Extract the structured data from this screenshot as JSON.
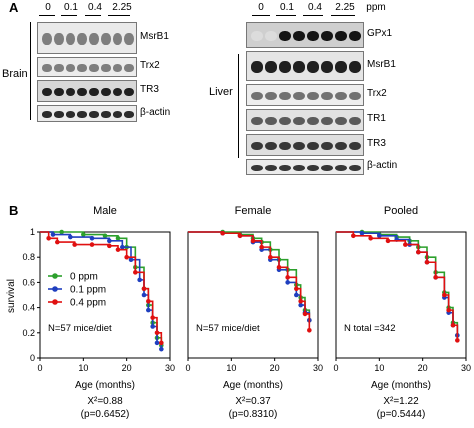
{
  "panel_a": {
    "letter": "A",
    "lanes": [
      "0",
      "0.1",
      "0.4",
      "2.25"
    ],
    "unit": "ppm",
    "brain": {
      "tissue": "Brain",
      "blots": [
        {
          "label": "MsrB1",
          "intensity": 0.55,
          "bg": "#eaeaea"
        },
        {
          "label": "Trx2",
          "intensity": 0.55,
          "bg": "#ececec"
        },
        {
          "label": "TR3",
          "intensity": 0.95,
          "bg": "#d8d8d8"
        },
        {
          "label": "β-actin",
          "intensity": 0.9,
          "bg": "#ececec"
        }
      ]
    },
    "liver": {
      "tissue": "Liver",
      "blots": [
        {
          "label": "GPx1",
          "intensity": 1.0,
          "bg": "#cfcfcf"
        },
        {
          "label": "MsrB1",
          "intensity": 0.95,
          "bg": "#e5e5e5"
        },
        {
          "label": "Trx2",
          "intensity": 0.6,
          "bg": "#ededed"
        },
        {
          "label": "TR1",
          "intensity": 0.7,
          "bg": "#e2e2e2"
        },
        {
          "label": "TR3",
          "intensity": 0.85,
          "bg": "#dedede"
        },
        {
          "label": "β-actin",
          "intensity": 0.85,
          "bg": "#ececec"
        }
      ]
    }
  },
  "panel_b": {
    "letter": "B",
    "ylabel": "survival",
    "xlabel": "Age (months)",
    "legend": [
      {
        "name": "0 ppm",
        "color": "#2ca02c"
      },
      {
        "name": "0.1 ppm",
        "color": "#1f3fbf"
      },
      {
        "name": "0.4 ppm",
        "color": "#e01010"
      }
    ]
  },
  "chart_data": [
    {
      "type": "line",
      "title": "Male",
      "xlabel": "Age (months)",
      "ylabel": "survival",
      "xlim": [
        0,
        30
      ],
      "ylim": [
        0,
        1
      ],
      "xticks": [
        "0",
        "10",
        "20",
        "30"
      ],
      "yticks": [
        "0",
        "0.2",
        "0.4",
        "0.6",
        "0.8",
        "1"
      ],
      "annotation": "N=57 mice/diet",
      "stat": "X²=0.88",
      "p": "(p=0.6452)",
      "series": [
        {
          "name": "0 ppm",
          "color": "#2ca02c",
          "x": [
            0,
            5,
            10,
            15,
            18,
            20,
            22,
            24,
            25,
            26,
            27,
            28
          ],
          "y": [
            1.0,
            1.0,
            0.98,
            0.97,
            0.95,
            0.88,
            0.72,
            0.55,
            0.42,
            0.28,
            0.16,
            0.1
          ]
        },
        {
          "name": "0.1 ppm",
          "color": "#1f3fbf",
          "x": [
            0,
            3,
            7,
            12,
            16,
            19,
            21,
            23,
            24,
            25,
            26,
            27,
            28
          ],
          "y": [
            1.0,
            0.98,
            0.96,
            0.95,
            0.93,
            0.88,
            0.78,
            0.62,
            0.5,
            0.38,
            0.25,
            0.12,
            0.07
          ]
        },
        {
          "name": "0.4 ppm",
          "color": "#e01010",
          "x": [
            0,
            2,
            4,
            8,
            12,
            16,
            18,
            20,
            22,
            24,
            25,
            26,
            27,
            28
          ],
          "y": [
            1.0,
            0.95,
            0.92,
            0.9,
            0.9,
            0.89,
            0.86,
            0.8,
            0.68,
            0.55,
            0.45,
            0.32,
            0.2,
            0.12
          ]
        }
      ]
    },
    {
      "type": "line",
      "title": "Female",
      "xlabel": "Age (months)",
      "ylabel": "",
      "xlim": [
        0,
        30
      ],
      "ylim": [
        0,
        1
      ],
      "xticks": [
        "0",
        "10",
        "20",
        "30"
      ],
      "yticks": [],
      "annotation": "N=57 mice/diet",
      "stat": "X²=0.37",
      "p": "(p=0.8310)",
      "series": [
        {
          "name": "0 ppm",
          "color": "#2ca02c",
          "x": [
            0,
            8,
            12,
            15,
            17,
            19,
            21,
            23,
            25,
            26,
            27,
            28
          ],
          "y": [
            1.0,
            1.0,
            0.98,
            0.95,
            0.92,
            0.86,
            0.78,
            0.7,
            0.58,
            0.48,
            0.38,
            0.3
          ]
        },
        {
          "name": "0.1 ppm",
          "color": "#1f3fbf",
          "x": [
            0,
            8,
            12,
            15,
            17,
            19,
            21,
            23,
            25,
            26,
            27,
            28
          ],
          "y": [
            1.0,
            0.99,
            0.97,
            0.92,
            0.86,
            0.78,
            0.7,
            0.6,
            0.5,
            0.42,
            0.36,
            0.3
          ]
        },
        {
          "name": "0.4 ppm",
          "color": "#e01010",
          "x": [
            0,
            8,
            12,
            15,
            17,
            19,
            21,
            23,
            25,
            26,
            27,
            28
          ],
          "y": [
            1.0,
            0.99,
            0.97,
            0.93,
            0.88,
            0.8,
            0.72,
            0.64,
            0.55,
            0.45,
            0.35,
            0.22
          ]
        }
      ]
    },
    {
      "type": "line",
      "title": "Pooled",
      "xlabel": "Age (months)",
      "ylabel": "",
      "xlim": [
        0,
        30
      ],
      "ylim": [
        0,
        1
      ],
      "xticks": [
        "0",
        "10",
        "20",
        "30"
      ],
      "yticks": [],
      "annotation": "N total =342",
      "stat": "X²=1.22",
      "p": "(p=0.5444)",
      "series": [
        {
          "name": "0 ppm",
          "color": "#2ca02c",
          "x": [
            0,
            6,
            10,
            14,
            17,
            19,
            21,
            23,
            25,
            26,
            27,
            28
          ],
          "y": [
            1.0,
            1.0,
            0.98,
            0.96,
            0.93,
            0.88,
            0.8,
            0.68,
            0.52,
            0.4,
            0.28,
            0.18
          ]
        },
        {
          "name": "0.1 ppm",
          "color": "#1f3fbf",
          "x": [
            0,
            6,
            10,
            14,
            17,
            19,
            21,
            23,
            25,
            26,
            27,
            28
          ],
          "y": [
            1.0,
            0.99,
            0.97,
            0.94,
            0.9,
            0.84,
            0.76,
            0.64,
            0.48,
            0.36,
            0.26,
            0.18
          ]
        },
        {
          "name": "0.4 ppm",
          "color": "#e01010",
          "x": [
            0,
            4,
            8,
            12,
            16,
            19,
            21,
            23,
            25,
            26,
            27,
            28
          ],
          "y": [
            1.0,
            0.97,
            0.95,
            0.93,
            0.9,
            0.84,
            0.76,
            0.64,
            0.5,
            0.38,
            0.26,
            0.14
          ]
        }
      ]
    }
  ]
}
